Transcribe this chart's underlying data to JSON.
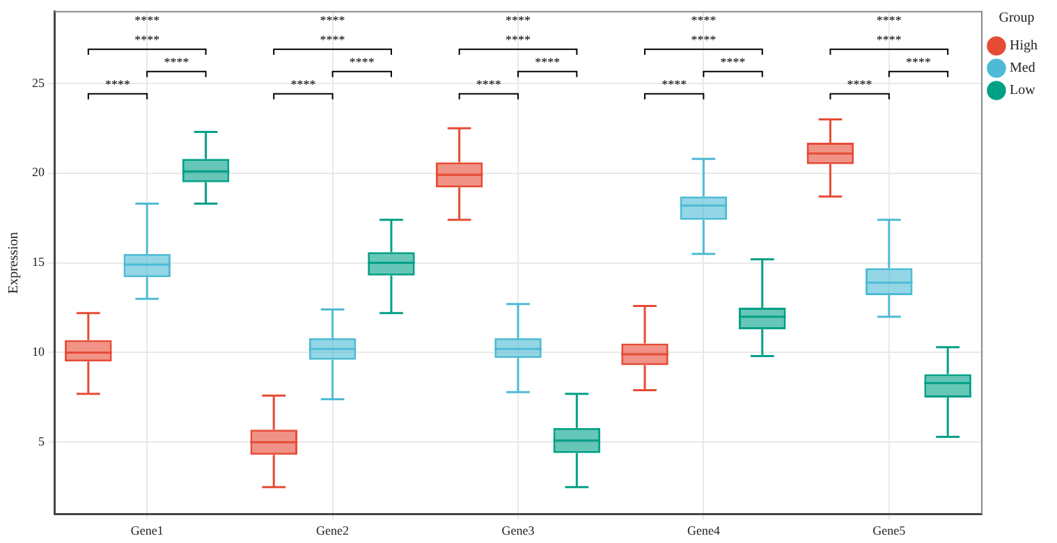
{
  "chart_data": {
    "type": "box",
    "ylabel": "Expression",
    "legend_title": "Group",
    "legend": "right",
    "grid": true,
    "categories": [
      "Gene1",
      "Gene2",
      "Gene3",
      "Gene4",
      "Gene5"
    ],
    "ylim": [
      1,
      29
    ],
    "yticks": [
      5,
      10,
      15,
      20,
      25
    ],
    "series": [
      {
        "name": "High",
        "color": "#e64b35",
        "boxes": [
          {
            "low": 7.7,
            "q1": 9.5,
            "median": 10.0,
            "q3": 10.7,
            "high": 12.2
          },
          {
            "low": 2.5,
            "q1": 4.3,
            "median": 5.0,
            "q3": 5.7,
            "high": 7.6
          },
          {
            "low": 17.4,
            "q1": 19.2,
            "median": 19.9,
            "q3": 20.6,
            "high": 22.5
          },
          {
            "low": 7.9,
            "q1": 9.3,
            "median": 9.9,
            "q3": 10.5,
            "high": 12.6
          },
          {
            "low": 18.7,
            "q1": 20.5,
            "median": 21.1,
            "q3": 21.7,
            "high": 23.0
          }
        ]
      },
      {
        "name": "Med",
        "color": "#4dbbd5",
        "boxes": [
          {
            "low": 13.0,
            "q1": 14.2,
            "median": 14.9,
            "q3": 15.5,
            "high": 18.3
          },
          {
            "low": 7.4,
            "q1": 9.6,
            "median": 10.2,
            "q3": 10.8,
            "high": 12.4
          },
          {
            "low": 7.8,
            "q1": 9.7,
            "median": 10.2,
            "q3": 10.8,
            "high": 12.7
          },
          {
            "low": 15.5,
            "q1": 17.4,
            "median": 18.2,
            "q3": 18.7,
            "high": 20.8
          },
          {
            "low": 12.0,
            "q1": 13.2,
            "median": 13.9,
            "q3": 14.7,
            "high": 17.4
          }
        ]
      },
      {
        "name": "Low",
        "color": "#00a087",
        "boxes": [
          {
            "low": 18.3,
            "q1": 19.5,
            "median": 20.1,
            "q3": 20.8,
            "high": 22.3
          },
          {
            "low": 12.2,
            "q1": 14.3,
            "median": 15.0,
            "q3": 15.6,
            "high": 17.4
          },
          {
            "low": 2.5,
            "q1": 4.4,
            "median": 5.1,
            "q3": 5.8,
            "high": 7.7
          },
          {
            "low": 9.8,
            "q1": 11.3,
            "median": 12.0,
            "q3": 12.5,
            "high": 15.2
          },
          {
            "low": 5.3,
            "q1": 7.5,
            "median": 8.3,
            "q3": 8.8,
            "high": 10.3
          }
        ]
      }
    ],
    "annotations": [
      "****",
      "****",
      "****",
      "****",
      "****",
      "****",
      "****",
      "****",
      "****",
      "****",
      "****",
      "****",
      "****",
      "****",
      "****",
      "****",
      "****",
      "****",
      "****",
      "****"
    ]
  }
}
